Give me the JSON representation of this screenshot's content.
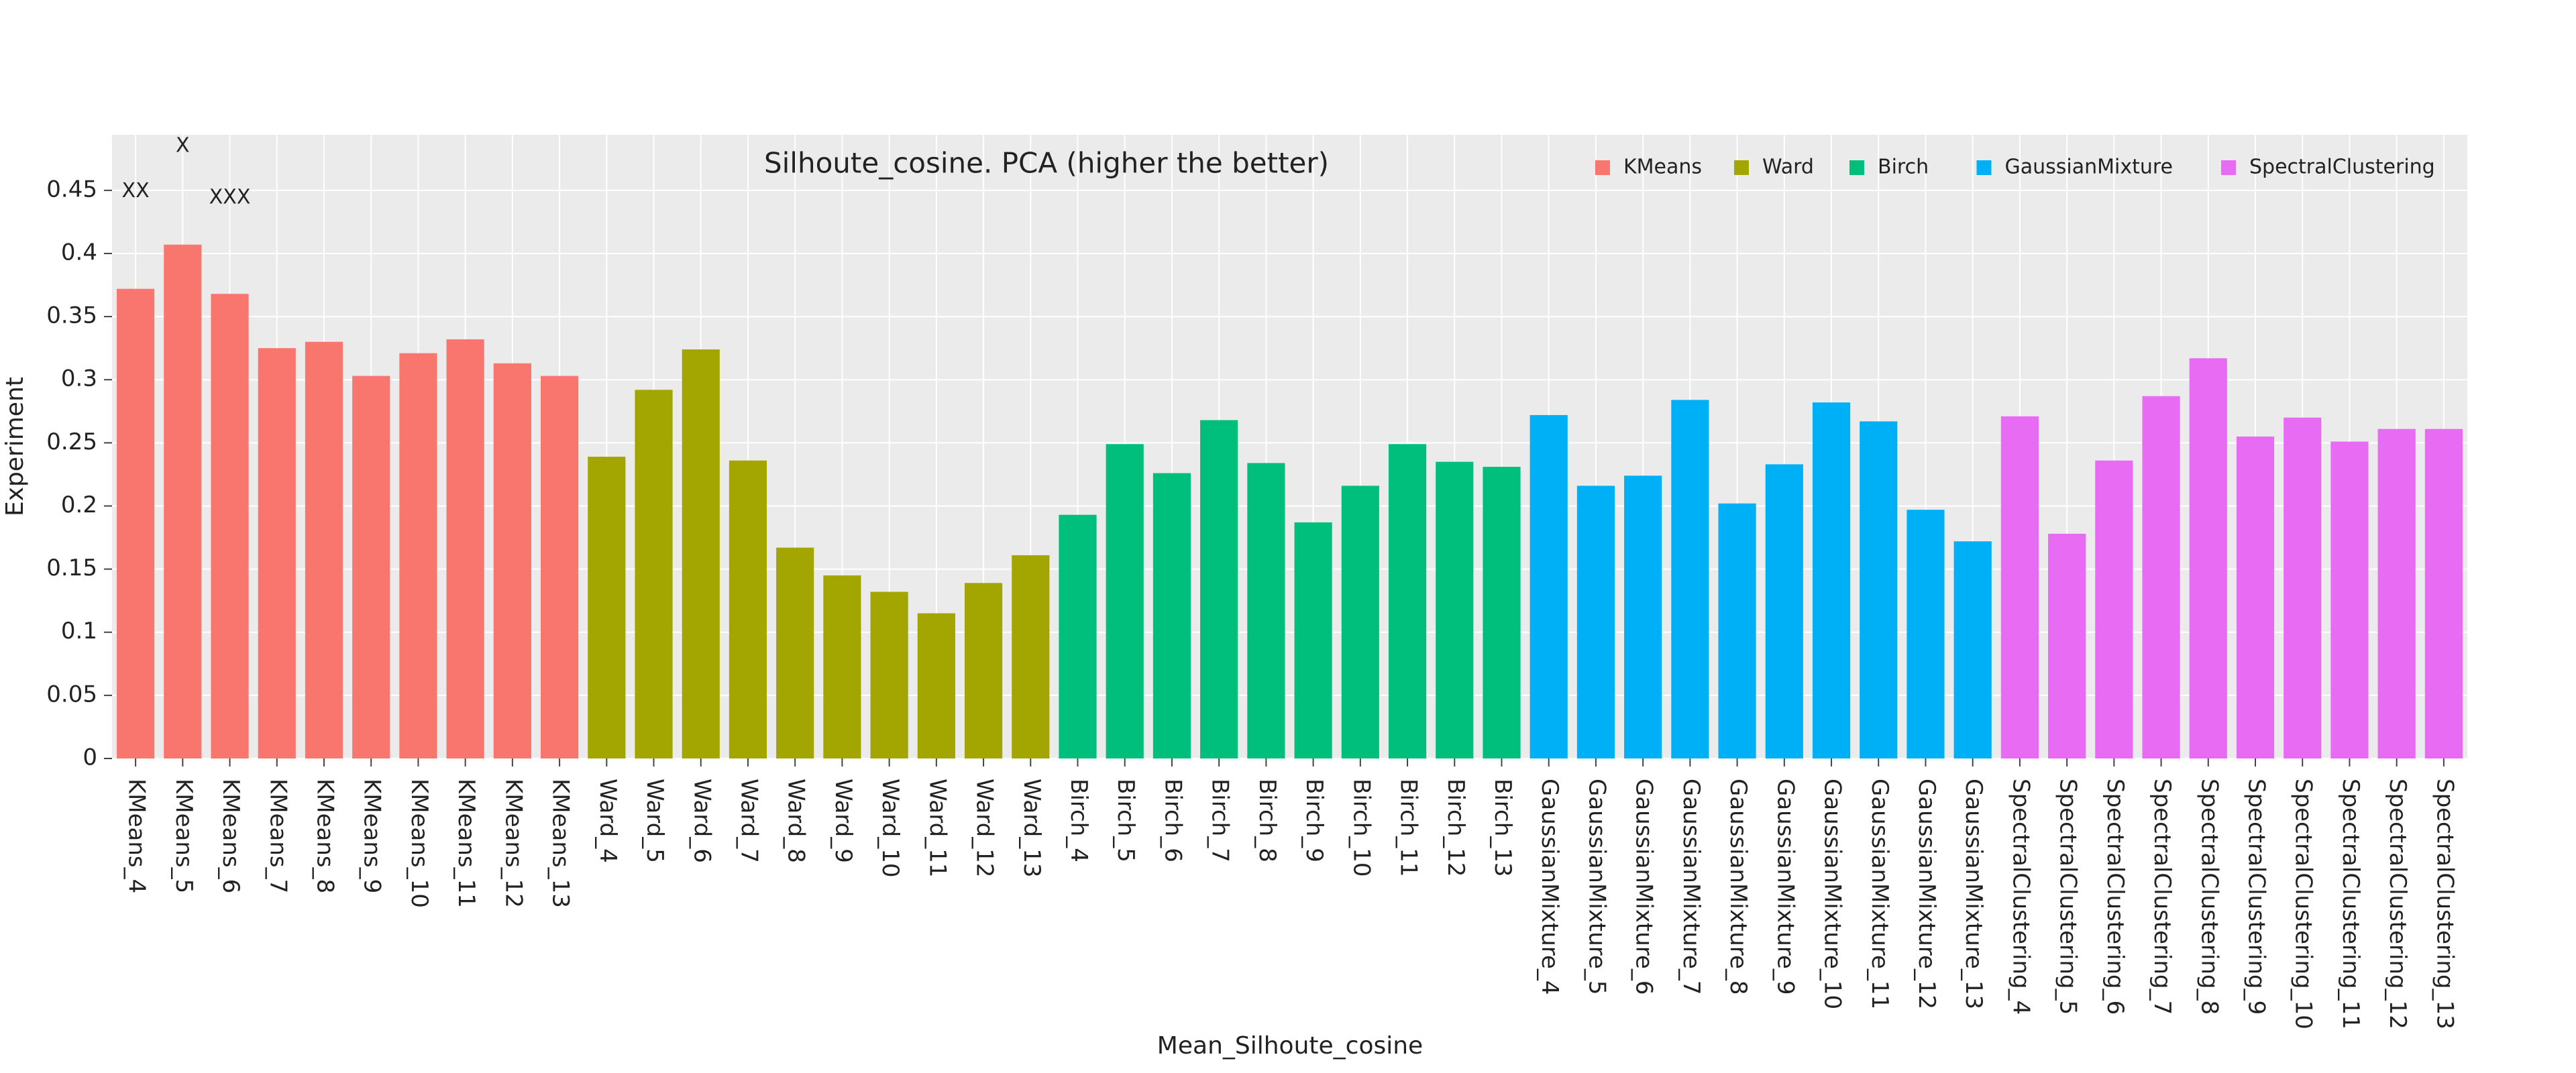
{
  "chart_data": {
    "type": "bar",
    "title": "Silhoute_cosine. PCA (higher the better)",
    "x_label": "Mean_Silhoute_cosine",
    "y_label": "Experiment",
    "categories": [
      "KMeans_4",
      "KMeans_5",
      "KMeans_6",
      "KMeans_7",
      "KMeans_8",
      "KMeans_9",
      "KMeans_10",
      "KMeans_11",
      "KMeans_12",
      "KMeans_13",
      "Ward_4",
      "Ward_5",
      "Ward_6",
      "Ward_7",
      "Ward_8",
      "Ward_9",
      "Ward_10",
      "Ward_11",
      "Ward_12",
      "Ward_13",
      "Birch_4",
      "Birch_5",
      "Birch_6",
      "Birch_7",
      "Birch_8",
      "Birch_9",
      "Birch_10",
      "Birch_11",
      "Birch_12",
      "Birch_13",
      "GaussianMixture_4",
      "GaussianMixture_5",
      "GaussianMixture_6",
      "GaussianMixture_7",
      "GaussianMixture_8",
      "GaussianMixture_9",
      "GaussianMixture_10",
      "GaussianMixture_11",
      "GaussianMixture_12",
      "GaussianMixture_13",
      "SpectralClustering_4",
      "SpectralClustering_5",
      "SpectralClustering_6",
      "SpectralClustering_7",
      "SpectralClustering_8",
      "SpectralClustering_9",
      "SpectralClustering_10",
      "SpectralClustering_11",
      "SpectralClustering_12",
      "SpectralClustering_13"
    ],
    "series": [
      {
        "name": "KMeans",
        "color": "#F8766D",
        "values": [
          0.372,
          0.407,
          0.368,
          0.325,
          0.33,
          0.303,
          0.321,
          0.332,
          0.313,
          0.303,
          null,
          null,
          null,
          null,
          null,
          null,
          null,
          null,
          null,
          null,
          null,
          null,
          null,
          null,
          null,
          null,
          null,
          null,
          null,
          null,
          null,
          null,
          null,
          null,
          null,
          null,
          null,
          null,
          null,
          null,
          null,
          null,
          null,
          null,
          null,
          null,
          null,
          null,
          null,
          null
        ]
      },
      {
        "name": "Ward",
        "color": "#A3A500",
        "values": [
          null,
          null,
          null,
          null,
          null,
          null,
          null,
          null,
          null,
          null,
          0.239,
          0.292,
          0.324,
          0.236,
          0.167,
          0.145,
          0.132,
          0.115,
          0.139,
          0.161,
          null,
          null,
          null,
          null,
          null,
          null,
          null,
          null,
          null,
          null,
          null,
          null,
          null,
          null,
          null,
          null,
          null,
          null,
          null,
          null,
          null,
          null,
          null,
          null,
          null,
          null,
          null,
          null,
          null,
          null
        ]
      },
      {
        "name": "Birch",
        "color": "#00BF7D",
        "values": [
          null,
          null,
          null,
          null,
          null,
          null,
          null,
          null,
          null,
          null,
          null,
          null,
          null,
          null,
          null,
          null,
          null,
          null,
          null,
          null,
          0.193,
          0.249,
          0.226,
          0.268,
          0.234,
          0.187,
          0.216,
          0.249,
          0.235,
          0.231,
          null,
          null,
          null,
          null,
          null,
          null,
          null,
          null,
          null,
          null,
          null,
          null,
          null,
          null,
          null,
          null,
          null,
          null,
          null,
          null
        ]
      },
      {
        "name": "GaussianMixture",
        "color": "#00B0F6",
        "values": [
          null,
          null,
          null,
          null,
          null,
          null,
          null,
          null,
          null,
          null,
          null,
          null,
          null,
          null,
          null,
          null,
          null,
          null,
          null,
          null,
          null,
          null,
          null,
          null,
          null,
          null,
          null,
          null,
          null,
          null,
          0.272,
          0.216,
          0.224,
          0.284,
          0.202,
          0.233,
          0.282,
          0.267,
          0.197,
          0.172,
          null,
          null,
          null,
          null,
          null,
          null,
          null,
          null,
          null,
          null
        ]
      },
      {
        "name": "SpectralClustering",
        "color": "#E76BF3",
        "values": [
          null,
          null,
          null,
          null,
          null,
          null,
          null,
          null,
          null,
          null,
          null,
          null,
          null,
          null,
          null,
          null,
          null,
          null,
          null,
          null,
          null,
          null,
          null,
          null,
          null,
          null,
          null,
          null,
          null,
          null,
          null,
          null,
          null,
          null,
          null,
          null,
          null,
          null,
          null,
          null,
          0.271,
          0.178,
          0.236,
          0.287,
          0.317,
          0.255,
          0.27,
          0.251,
          0.261,
          0.261
        ]
      }
    ],
    "annotations": [
      {
        "text": "XX",
        "category": "KMeans_4",
        "y": 0.449
      },
      {
        "text": "X",
        "category": "KMeans_5",
        "y": 0.485
      },
      {
        "text": "XXX",
        "category": "KMeans_6",
        "y": 0.444
      }
    ],
    "ylim": [
      0,
      0.494
    ],
    "yticks": [
      0,
      0.05,
      0.1,
      0.15,
      0.2,
      0.25,
      0.3,
      0.35,
      0.4,
      0.45
    ],
    "grid": true,
    "legend": "top-right"
  }
}
